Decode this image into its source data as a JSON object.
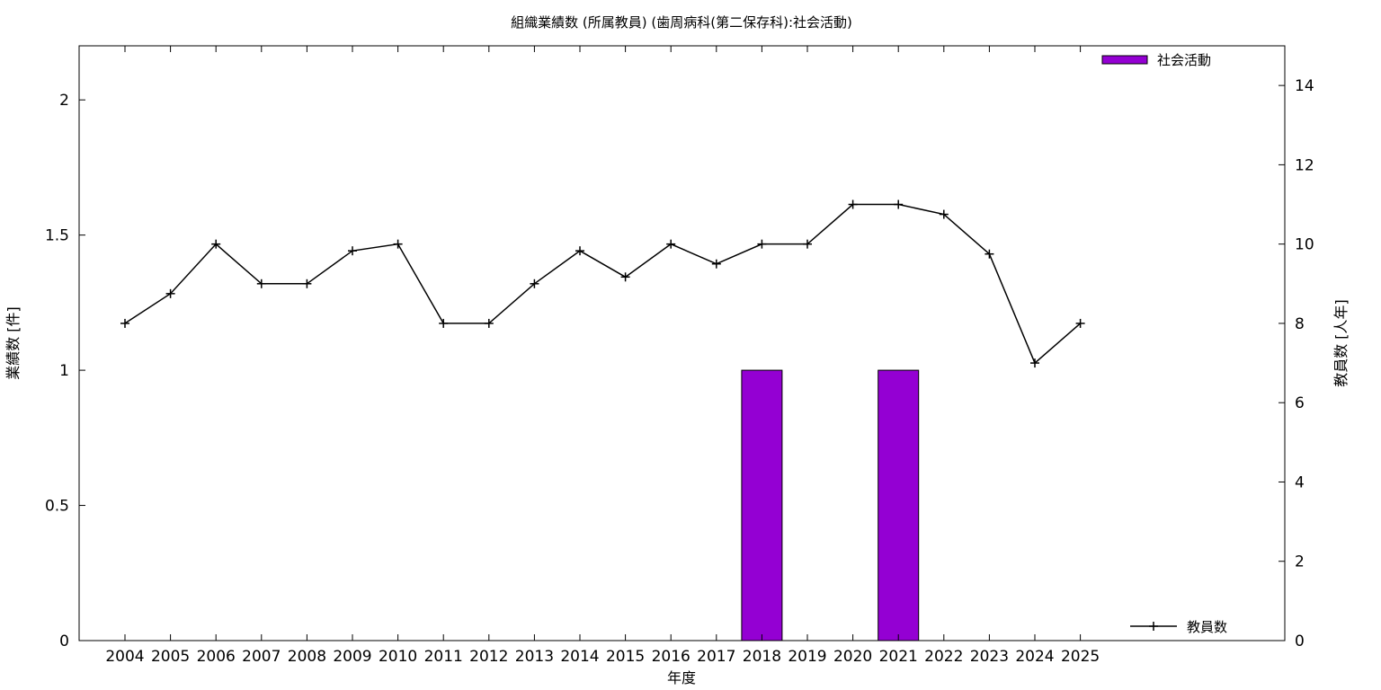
{
  "chart_data": {
    "type": "bar",
    "title": "組織業績数 (所属教員) (歯周病科(第二保存科):社会活動)",
    "xlabel": "年度",
    "ylabel": "業績数 [件]",
    "y2label": "教員数 [人年]",
    "categories": [
      "2004",
      "2005",
      "2006",
      "2007",
      "2008",
      "2009",
      "2010",
      "2011",
      "2012",
      "2013",
      "2014",
      "2015",
      "2016",
      "2017",
      "2018",
      "2019",
      "2020",
      "2021",
      "2022",
      "2023",
      "2024",
      "2025"
    ],
    "ylim": [
      0,
      2.2
    ],
    "y_ticks": [
      "0",
      "0.5",
      "1",
      "1.5",
      "2"
    ],
    "y2lim": [
      0,
      15
    ],
    "y2_ticks": [
      "0",
      "2",
      "4",
      "6",
      "8",
      "10",
      "12",
      "14"
    ],
    "series": [
      {
        "name": "社会活動",
        "type": "bar",
        "axis": "left",
        "color": "#9400d3",
        "values": [
          0,
          0,
          0,
          0,
          0,
          0,
          0,
          0,
          0,
          0,
          0,
          0,
          0,
          0,
          1,
          0,
          0,
          1,
          0,
          0,
          0,
          0
        ]
      },
      {
        "name": "教員数",
        "type": "line",
        "axis": "right",
        "color": "#000000",
        "values": [
          8,
          8.75,
          10,
          9,
          9,
          9.83,
          10,
          8,
          8,
          9,
          9.83,
          9.17,
          10,
          9.5,
          10,
          10,
          11,
          11,
          10.75,
          9.75,
          7,
          8
        ]
      }
    ],
    "legend_placement": "top-right",
    "grid": false
  }
}
